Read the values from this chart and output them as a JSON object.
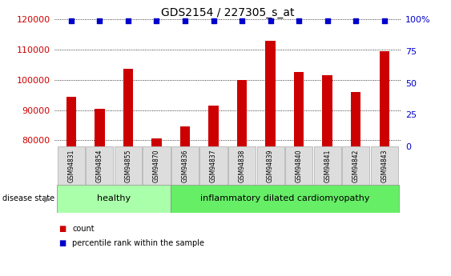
{
  "title": "GDS2154 / 227305_s_at",
  "categories": [
    "GSM94831",
    "GSM94854",
    "GSM94855",
    "GSM94870",
    "GSM94836",
    "GSM94837",
    "GSM94838",
    "GSM94839",
    "GSM94840",
    "GSM94841",
    "GSM94842",
    "GSM94843"
  ],
  "bar_values": [
    94500,
    90500,
    103500,
    80500,
    84500,
    91500,
    100000,
    113000,
    102500,
    101500,
    96000,
    109500
  ],
  "percentile_values": [
    99,
    99,
    99,
    99,
    99,
    99,
    99,
    99,
    99,
    99,
    99,
    99
  ],
  "bar_color": "#cc0000",
  "percentile_color": "#0000cc",
  "ylim_left": [
    78000,
    120000
  ],
  "ylim_right": [
    0,
    100
  ],
  "yticks_left": [
    80000,
    90000,
    100000,
    110000,
    120000
  ],
  "yticks_right": [
    0,
    25,
    50,
    75,
    100
  ],
  "ytick_labels_right": [
    "0",
    "25",
    "50",
    "75",
    "100%"
  ],
  "healthy_count": 4,
  "disease_count": 8,
  "healthy_label": "healthy",
  "disease_label": "inflammatory dilated cardiomyopathy",
  "disease_state_label": "disease state",
  "legend_count_label": "count",
  "legend_percentile_label": "percentile rank within the sample",
  "healthy_color": "#aaffaa",
  "disease_color": "#66ee66",
  "group_box_color": "#dddddd",
  "title_fontsize": 10,
  "tick_fontsize": 8,
  "label_fontsize": 7
}
